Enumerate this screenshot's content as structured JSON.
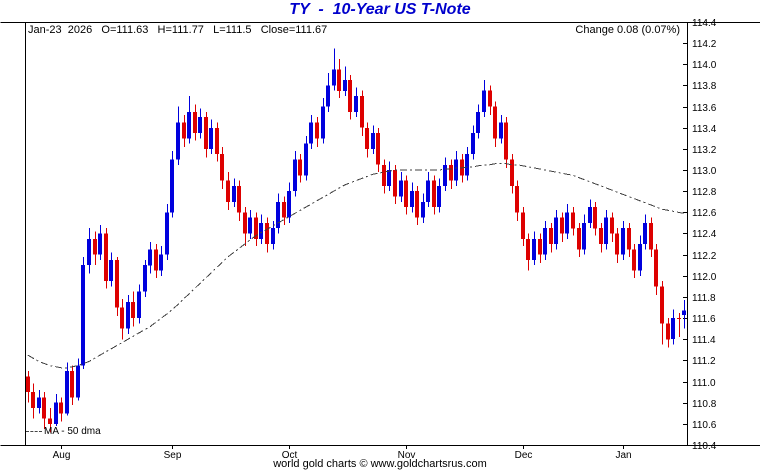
{
  "header": {
    "title": "TY  -  10-Year US T-Note",
    "info": "Jan-23  2026   O=111.63   H=111.77   L=111.5   Close=111.67",
    "change": "Change 0.08 (0.07%)"
  },
  "legend": {
    "ma_label": "MA - 50 dma"
  },
  "footer": {
    "credit": "world gold charts © www.goldchartsrus.com"
  },
  "chart_data": {
    "type": "candlestick",
    "symbol": "TY",
    "title": "TY - 10-Year US T-Note",
    "last_bar": {
      "date": "Jan-23 2026",
      "open": 111.63,
      "high": 111.77,
      "low": 111.5,
      "close": 111.67,
      "change": 0.08,
      "change_pct": "0.07%"
    },
    "y_axis": {
      "min": 110.4,
      "max": 114.4,
      "step": 0.2
    },
    "x_axis": {
      "months": [
        {
          "label": "Aug",
          "index": 6
        },
        {
          "label": "Sep",
          "index": 26
        },
        {
          "label": "Oct",
          "index": 47
        },
        {
          "label": "Nov",
          "index": 68
        },
        {
          "label": "Dec",
          "index": 89
        },
        {
          "label": "Jan",
          "index": 107
        }
      ]
    },
    "colors": {
      "up": "#0000dd",
      "down": "#dd0000",
      "ma": "#404040",
      "frame": "#000000",
      "title": "#0000cc"
    },
    "candle_format": [
      "open",
      "high",
      "low",
      "close"
    ],
    "candles": [
      [
        111.05,
        111.1,
        110.8,
        110.9
      ],
      [
        110.9,
        110.98,
        110.65,
        110.75
      ],
      [
        110.75,
        110.92,
        110.7,
        110.85
      ],
      [
        110.85,
        110.9,
        110.55,
        110.65
      ],
      [
        110.65,
        110.75,
        110.52,
        110.6
      ],
      [
        110.6,
        110.88,
        110.58,
        110.8
      ],
      [
        110.8,
        110.85,
        110.62,
        110.7
      ],
      [
        110.7,
        111.18,
        110.68,
        111.1
      ],
      [
        111.1,
        111.15,
        110.78,
        110.85
      ],
      [
        110.85,
        111.22,
        110.82,
        111.15
      ],
      [
        111.15,
        112.18,
        111.12,
        112.1
      ],
      [
        112.1,
        112.45,
        112.02,
        112.35
      ],
      [
        112.35,
        112.42,
        112.1,
        112.2
      ],
      [
        112.2,
        112.48,
        112.15,
        112.4
      ],
      [
        112.4,
        112.45,
        111.88,
        111.95
      ],
      [
        111.95,
        112.22,
        111.9,
        112.15
      ],
      [
        112.15,
        112.18,
        111.62,
        111.7
      ],
      [
        111.7,
        111.78,
        111.4,
        111.5
      ],
      [
        111.5,
        111.82,
        111.45,
        111.75
      ],
      [
        111.75,
        111.85,
        111.52,
        111.6
      ],
      [
        111.6,
        111.92,
        111.55,
        111.85
      ],
      [
        111.85,
        112.15,
        111.8,
        112.1
      ],
      [
        112.1,
        112.32,
        112.02,
        112.25
      ],
      [
        112.25,
        112.3,
        111.98,
        112.05
      ],
      [
        112.05,
        112.28,
        112.0,
        112.2
      ],
      [
        112.2,
        112.68,
        112.15,
        112.6
      ],
      [
        112.6,
        113.18,
        112.55,
        113.1
      ],
      [
        113.1,
        113.6,
        113.05,
        113.45
      ],
      [
        113.45,
        113.52,
        113.22,
        113.3
      ],
      [
        113.3,
        113.7,
        113.25,
        113.55
      ],
      [
        113.55,
        113.62,
        113.28,
        113.35
      ],
      [
        113.35,
        113.58,
        113.3,
        113.5
      ],
      [
        113.5,
        113.55,
        113.12,
        113.2
      ],
      [
        113.2,
        113.48,
        113.15,
        113.4
      ],
      [
        113.4,
        113.45,
        113.08,
        113.15
      ],
      [
        113.15,
        113.22,
        112.82,
        112.9
      ],
      [
        112.9,
        112.98,
        112.62,
        112.7
      ],
      [
        112.7,
        112.92,
        112.65,
        112.85
      ],
      [
        112.85,
        112.9,
        112.52,
        112.6
      ],
      [
        112.6,
        112.65,
        112.28,
        112.4
      ],
      [
        112.4,
        112.62,
        112.35,
        112.55
      ],
      [
        112.55,
        112.6,
        112.28,
        112.35
      ],
      [
        112.35,
        112.58,
        112.3,
        112.5
      ],
      [
        112.5,
        112.55,
        112.22,
        112.3
      ],
      [
        112.3,
        112.52,
        112.25,
        112.45
      ],
      [
        112.45,
        112.78,
        112.4,
        112.7
      ],
      [
        112.7,
        112.75,
        112.48,
        112.55
      ],
      [
        112.55,
        112.88,
        112.5,
        112.8
      ],
      [
        112.8,
        113.18,
        112.75,
        113.1
      ],
      [
        113.1,
        113.15,
        112.88,
        112.95
      ],
      [
        112.95,
        113.32,
        112.9,
        113.25
      ],
      [
        113.25,
        113.52,
        113.2,
        113.45
      ],
      [
        113.45,
        113.5,
        113.22,
        113.3
      ],
      [
        113.3,
        113.68,
        113.25,
        113.6
      ],
      [
        113.6,
        113.92,
        113.55,
        113.8
      ],
      [
        113.8,
        114.15,
        113.75,
        113.95
      ],
      [
        113.95,
        114.05,
        113.68,
        113.75
      ],
      [
        113.75,
        113.98,
        113.7,
        113.85
      ],
      [
        113.85,
        113.9,
        113.48,
        113.55
      ],
      [
        113.55,
        113.78,
        113.5,
        113.7
      ],
      [
        113.7,
        113.75,
        113.32,
        113.4
      ],
      [
        113.4,
        113.45,
        113.12,
        113.2
      ],
      [
        113.2,
        113.42,
        113.15,
        113.35
      ],
      [
        113.35,
        113.4,
        112.98,
        113.05
      ],
      [
        113.05,
        113.1,
        112.78,
        112.85
      ],
      [
        112.85,
        113.08,
        112.8,
        113.0
      ],
      [
        113.0,
        113.05,
        112.68,
        112.75
      ],
      [
        112.75,
        112.98,
        112.7,
        112.9
      ],
      [
        112.9,
        112.95,
        112.58,
        112.65
      ],
      [
        112.65,
        112.88,
        112.6,
        112.8
      ],
      [
        112.8,
        112.85,
        112.48,
        112.55
      ],
      [
        112.55,
        112.78,
        112.5,
        112.7
      ],
      [
        112.7,
        112.98,
        112.65,
        112.9
      ],
      [
        112.9,
        112.95,
        112.58,
        112.65
      ],
      [
        112.65,
        112.92,
        112.6,
        112.85
      ],
      [
        112.85,
        113.12,
        112.8,
        113.05
      ],
      [
        113.05,
        113.1,
        112.82,
        112.9
      ],
      [
        112.9,
        113.18,
        112.85,
        113.1
      ],
      [
        113.1,
        113.15,
        112.88,
        112.95
      ],
      [
        112.95,
        113.22,
        112.9,
        113.15
      ],
      [
        113.15,
        113.42,
        113.1,
        113.35
      ],
      [
        113.35,
        113.62,
        113.3,
        113.55
      ],
      [
        113.55,
        113.85,
        113.5,
        113.75
      ],
      [
        113.75,
        113.8,
        113.52,
        113.6
      ],
      [
        113.6,
        113.65,
        113.22,
        113.3
      ],
      [
        113.3,
        113.52,
        113.25,
        113.45
      ],
      [
        113.45,
        113.5,
        113.02,
        113.1
      ],
      [
        113.1,
        113.15,
        112.78,
        112.85
      ],
      [
        112.85,
        112.9,
        112.52,
        112.6
      ],
      [
        112.6,
        112.65,
        112.28,
        112.35
      ],
      [
        112.35,
        112.4,
        112.05,
        112.15
      ],
      [
        112.15,
        112.42,
        112.1,
        112.35
      ],
      [
        112.35,
        112.4,
        112.12,
        112.2
      ],
      [
        112.2,
        112.52,
        112.15,
        112.45
      ],
      [
        112.45,
        112.5,
        112.22,
        112.3
      ],
      [
        112.3,
        112.62,
        112.25,
        112.55
      ],
      [
        112.55,
        112.6,
        112.32,
        112.4
      ],
      [
        112.4,
        112.68,
        112.35,
        112.6
      ],
      [
        112.6,
        112.65,
        112.38,
        112.45
      ],
      [
        112.45,
        112.5,
        112.18,
        112.25
      ],
      [
        112.25,
        112.58,
        112.2,
        112.5
      ],
      [
        112.5,
        112.72,
        112.45,
        112.65
      ],
      [
        112.65,
        112.7,
        112.38,
        112.45
      ],
      [
        112.45,
        112.5,
        112.22,
        112.3
      ],
      [
        112.3,
        112.62,
        112.25,
        112.55
      ],
      [
        112.55,
        112.6,
        112.32,
        112.4
      ],
      [
        112.4,
        112.45,
        112.12,
        112.2
      ],
      [
        112.2,
        112.52,
        112.15,
        112.45
      ],
      [
        112.45,
        112.5,
        112.18,
        112.25
      ],
      [
        112.25,
        112.3,
        111.98,
        112.05
      ],
      [
        112.05,
        112.38,
        112.0,
        112.3
      ],
      [
        112.3,
        112.58,
        112.25,
        112.5
      ],
      [
        112.5,
        112.55,
        112.18,
        112.25
      ],
      [
        112.25,
        112.3,
        111.82,
        111.9
      ],
      [
        111.9,
        111.95,
        111.35,
        111.55
      ],
      [
        111.55,
        111.6,
        111.32,
        111.4
      ],
      [
        111.4,
        111.68,
        111.35,
        111.6
      ],
      [
        111.6,
        111.65,
        111.42,
        111.59
      ],
      [
        111.63,
        111.77,
        111.5,
        111.67
      ]
    ],
    "ma_50": [
      111.25,
      111.22,
      111.19,
      111.17,
      111.15,
      111.14,
      111.13,
      111.13,
      111.14,
      111.15,
      111.17,
      111.19,
      111.22,
      111.25,
      111.28,
      111.31,
      111.34,
      111.37,
      111.4,
      111.43,
      111.46,
      111.49,
      111.52,
      111.56,
      111.6,
      111.64,
      111.68,
      111.73,
      111.78,
      111.83,
      111.88,
      111.93,
      111.98,
      112.03,
      112.08,
      112.13,
      112.18,
      112.22,
      112.26,
      112.3,
      112.34,
      112.38,
      112.41,
      112.44,
      112.47,
      112.5,
      112.53,
      112.56,
      112.59,
      112.62,
      112.65,
      112.68,
      112.71,
      112.74,
      112.77,
      112.8,
      112.83,
      112.86,
      112.88,
      112.9,
      112.92,
      112.94,
      112.96,
      112.97,
      112.98,
      112.99,
      113.0,
      113.0,
      113.0,
      113.0,
      113.0,
      113.0,
      113.0,
      113.0,
      113.0,
      113.01,
      113.01,
      113.02,
      113.02,
      113.03,
      113.03,
      113.04,
      113.05,
      113.05,
      113.06,
      113.06,
      113.06,
      113.05,
      113.05,
      113.04,
      113.03,
      113.02,
      113.01,
      113.0,
      112.99,
      112.98,
      112.97,
      112.96,
      112.95,
      112.93,
      112.91,
      112.89,
      112.87,
      112.85,
      112.83,
      112.81,
      112.79,
      112.77,
      112.75,
      112.73,
      112.71,
      112.69,
      112.67,
      112.65,
      112.63,
      112.62,
      112.61,
      112.6,
      112.59
    ]
  }
}
